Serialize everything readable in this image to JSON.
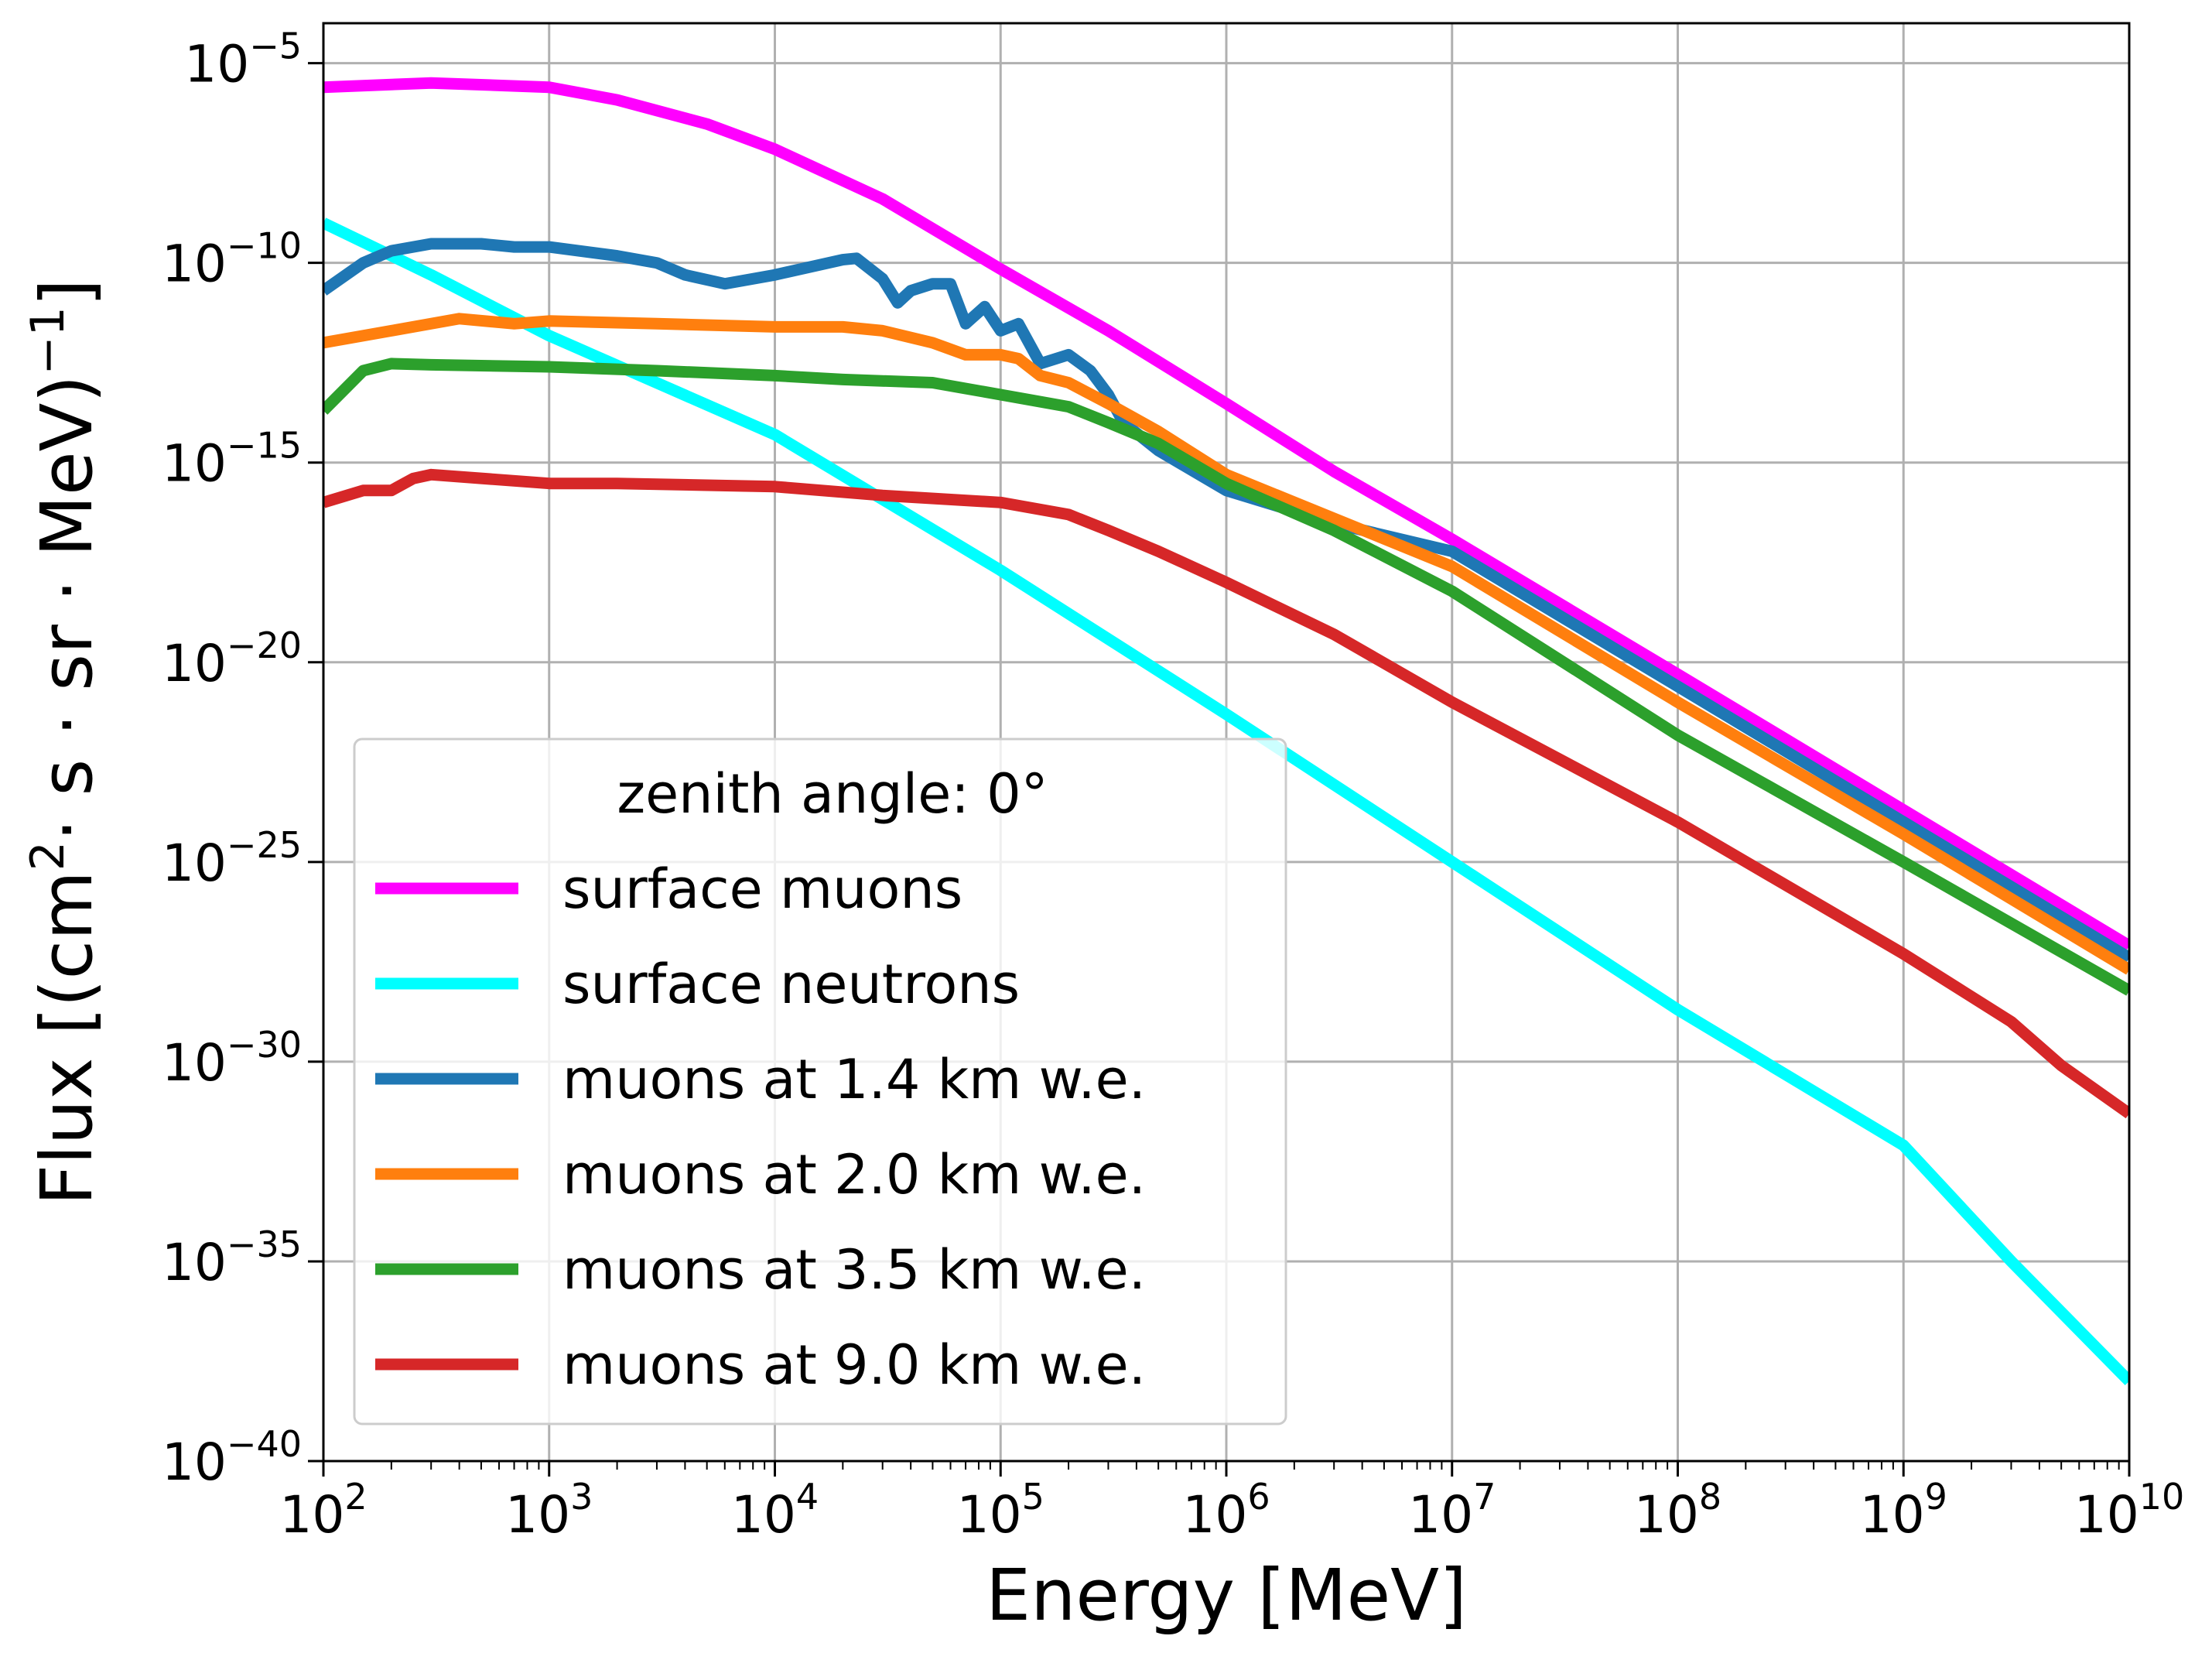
{
  "chart_data": {
    "type": "line",
    "title": "",
    "xlabel": "Energy [MeV]",
    "ylabel_parts": [
      "Flux [(cm",
      "2",
      "·  s · sr · MeV)",
      "−1",
      "]"
    ],
    "x_scale": "log",
    "y_scale": "log",
    "xlim": [
      100,
      10000000000
    ],
    "ylim": [
      1e-40,
      0.0001
    ],
    "grid": true,
    "x_ticks": [
      {
        "base": "10",
        "exp": "2",
        "value": 100
      },
      {
        "base": "10",
        "exp": "3",
        "value": 1000
      },
      {
        "base": "10",
        "exp": "4",
        "value": 10000
      },
      {
        "base": "10",
        "exp": "5",
        "value": 100000
      },
      {
        "base": "10",
        "exp": "6",
        "value": 1000000
      },
      {
        "base": "10",
        "exp": "7",
        "value": 10000000
      },
      {
        "base": "10",
        "exp": "8",
        "value": 100000000
      },
      {
        "base": "10",
        "exp": "9",
        "value": 1000000000
      },
      {
        "base": "10",
        "exp": "10",
        "value": 10000000000
      }
    ],
    "y_ticks": [
      {
        "base": "10",
        "exp": "−5",
        "value": 1e-05
      },
      {
        "base": "10",
        "exp": "−10",
        "value": 1e-10
      },
      {
        "base": "10",
        "exp": "−15",
        "value": 1e-15
      },
      {
        "base": "10",
        "exp": "−20",
        "value": 1e-20
      },
      {
        "base": "10",
        "exp": "−25",
        "value": 1e-25
      },
      {
        "base": "10",
        "exp": "−30",
        "value": 1e-30
      },
      {
        "base": "10",
        "exp": "−35",
        "value": 1e-35
      },
      {
        "base": "10",
        "exp": "−40",
        "value": 1e-40
      }
    ],
    "legend": {
      "title": "zenith angle: 0°",
      "placement": "lower-left"
    },
    "series": [
      {
        "name": "surface muons",
        "color": "#ff00ff",
        "points": [
          [
            100,
            2.5e-06
          ],
          [
            300,
            3.2e-06
          ],
          [
            1000,
            2.5e-06
          ],
          [
            2000,
            1.2e-06
          ],
          [
            5000,
            3e-07
          ],
          [
            10000,
            7e-08
          ],
          [
            30000,
            4e-09
          ],
          [
            100000,
            7e-11
          ],
          [
            300000,
            2e-12
          ],
          [
            1000000,
            3e-14
          ],
          [
            3000000,
            6e-16
          ],
          [
            10000000,
            1.2e-17
          ],
          [
            100000000,
            5e-21
          ],
          [
            1000000000,
            2e-24
          ],
          [
            10000000000,
            8e-28
          ]
        ]
      },
      {
        "name": "surface neutrons",
        "color": "#00ffff",
        "points": [
          [
            100,
            1e-09
          ],
          [
            300,
            5e-11
          ],
          [
            1000,
            1.5e-12
          ],
          [
            10000,
            5e-15
          ],
          [
            100000,
            2e-18
          ],
          [
            1000000,
            5e-22
          ],
          [
            10000000,
            1e-25
          ],
          [
            100000000,
            2e-29
          ],
          [
            1000000000,
            8e-33
          ],
          [
            3000000000,
            1e-35
          ],
          [
            10000000000,
            1e-38
          ]
        ]
      },
      {
        "name": "muons at 1.4 km w.e.",
        "color": "#1f77b4",
        "points": [
          [
            100,
            2e-11
          ],
          [
            150,
            1e-10
          ],
          [
            200,
            2e-10
          ],
          [
            300,
            3e-10
          ],
          [
            500,
            3e-10
          ],
          [
            700,
            2.5e-10
          ],
          [
            1000,
            2.5e-10
          ],
          [
            2000,
            1.5e-10
          ],
          [
            3000,
            1e-10
          ],
          [
            4000,
            5e-11
          ],
          [
            6000,
            3e-11
          ],
          [
            10000,
            5e-11
          ],
          [
            20000,
            1.2e-10
          ],
          [
            23000,
            1.3e-10
          ],
          [
            30000,
            4e-11
          ],
          [
            35000,
            1e-11
          ],
          [
            40000,
            2e-11
          ],
          [
            50000,
            3e-11
          ],
          [
            60000,
            3e-11
          ],
          [
            70000,
            3e-12
          ],
          [
            85000,
            8e-12
          ],
          [
            100000,
            2e-12
          ],
          [
            120000,
            3e-12
          ],
          [
            150000,
            3e-13
          ],
          [
            200000,
            5e-13
          ],
          [
            250000,
            2e-13
          ],
          [
            300000,
            5e-14
          ],
          [
            350000,
            1e-14
          ],
          [
            500000,
            2e-15
          ],
          [
            1000000,
            2e-16
          ],
          [
            3000000,
            3e-17
          ],
          [
            10000000,
            6e-18
          ],
          [
            100000000,
            2.5e-21
          ],
          [
            1000000000,
            1e-24
          ],
          [
            10000000000,
            4e-28
          ]
        ]
      },
      {
        "name": "muons at 2.0 km w.e.",
        "color": "#ff7f0e",
        "points": [
          [
            100,
            1e-12
          ],
          [
            200,
            2e-12
          ],
          [
            400,
            4e-12
          ],
          [
            700,
            3e-12
          ],
          [
            1000,
            3.5e-12
          ],
          [
            3000,
            3e-12
          ],
          [
            10000,
            2.5e-12
          ],
          [
            20000,
            2.5e-12
          ],
          [
            30000,
            2e-12
          ],
          [
            50000,
            1e-12
          ],
          [
            70000,
            5e-13
          ],
          [
            100000,
            5e-13
          ],
          [
            120000,
            4e-13
          ],
          [
            150000,
            1.5e-13
          ],
          [
            200000,
            1e-13
          ],
          [
            300000,
            3e-14
          ],
          [
            500000,
            6e-15
          ],
          [
            1000000,
            5e-16
          ],
          [
            3000000,
            4e-17
          ],
          [
            10000000,
            2.5e-18
          ],
          [
            100000000,
            1e-21
          ],
          [
            1000000000,
            5e-25
          ],
          [
            10000000000,
            2e-28
          ]
        ]
      },
      {
        "name": "muons at 3.5 km w.e.",
        "color": "#2ca02c",
        "points": [
          [
            100,
            2e-14
          ],
          [
            150,
            2e-13
          ],
          [
            200,
            3e-13
          ],
          [
            300,
            2.8e-13
          ],
          [
            1000,
            2.5e-13
          ],
          [
            3000,
            2e-13
          ],
          [
            10000,
            1.5e-13
          ],
          [
            20000,
            1.2e-13
          ],
          [
            50000,
            1e-13
          ],
          [
            100000,
            5e-14
          ],
          [
            200000,
            2.5e-14
          ],
          [
            300000,
            1e-14
          ],
          [
            500000,
            3e-15
          ],
          [
            1000000,
            3e-16
          ],
          [
            3000000,
            2e-17
          ],
          [
            10000000,
            6e-19
          ],
          [
            100000000,
            1.5e-22
          ],
          [
            1000000000,
            1e-25
          ],
          [
            10000000000,
            6e-29
          ]
        ]
      },
      {
        "name": "muons at 9.0 km w.e.",
        "color": "#d62728",
        "points": [
          [
            100,
            1e-16
          ],
          [
            150,
            2e-16
          ],
          [
            200,
            2e-16
          ],
          [
            250,
            4e-16
          ],
          [
            300,
            5e-16
          ],
          [
            1000,
            3e-16
          ],
          [
            2000,
            3e-16
          ],
          [
            10000,
            2.5e-16
          ],
          [
            30000,
            1.5e-16
          ],
          [
            100000,
            1e-16
          ],
          [
            200000,
            5e-17
          ],
          [
            300000,
            2e-17
          ],
          [
            500000,
            6e-18
          ],
          [
            1000000,
            1e-18
          ],
          [
            3000000,
            5e-20
          ],
          [
            10000000,
            1e-21
          ],
          [
            100000000,
            1e-24
          ],
          [
            1000000000,
            5e-28
          ],
          [
            3000000000,
            1e-29
          ],
          [
            5000000000,
            8e-31
          ],
          [
            10000000000,
            5e-32
          ]
        ]
      }
    ]
  }
}
